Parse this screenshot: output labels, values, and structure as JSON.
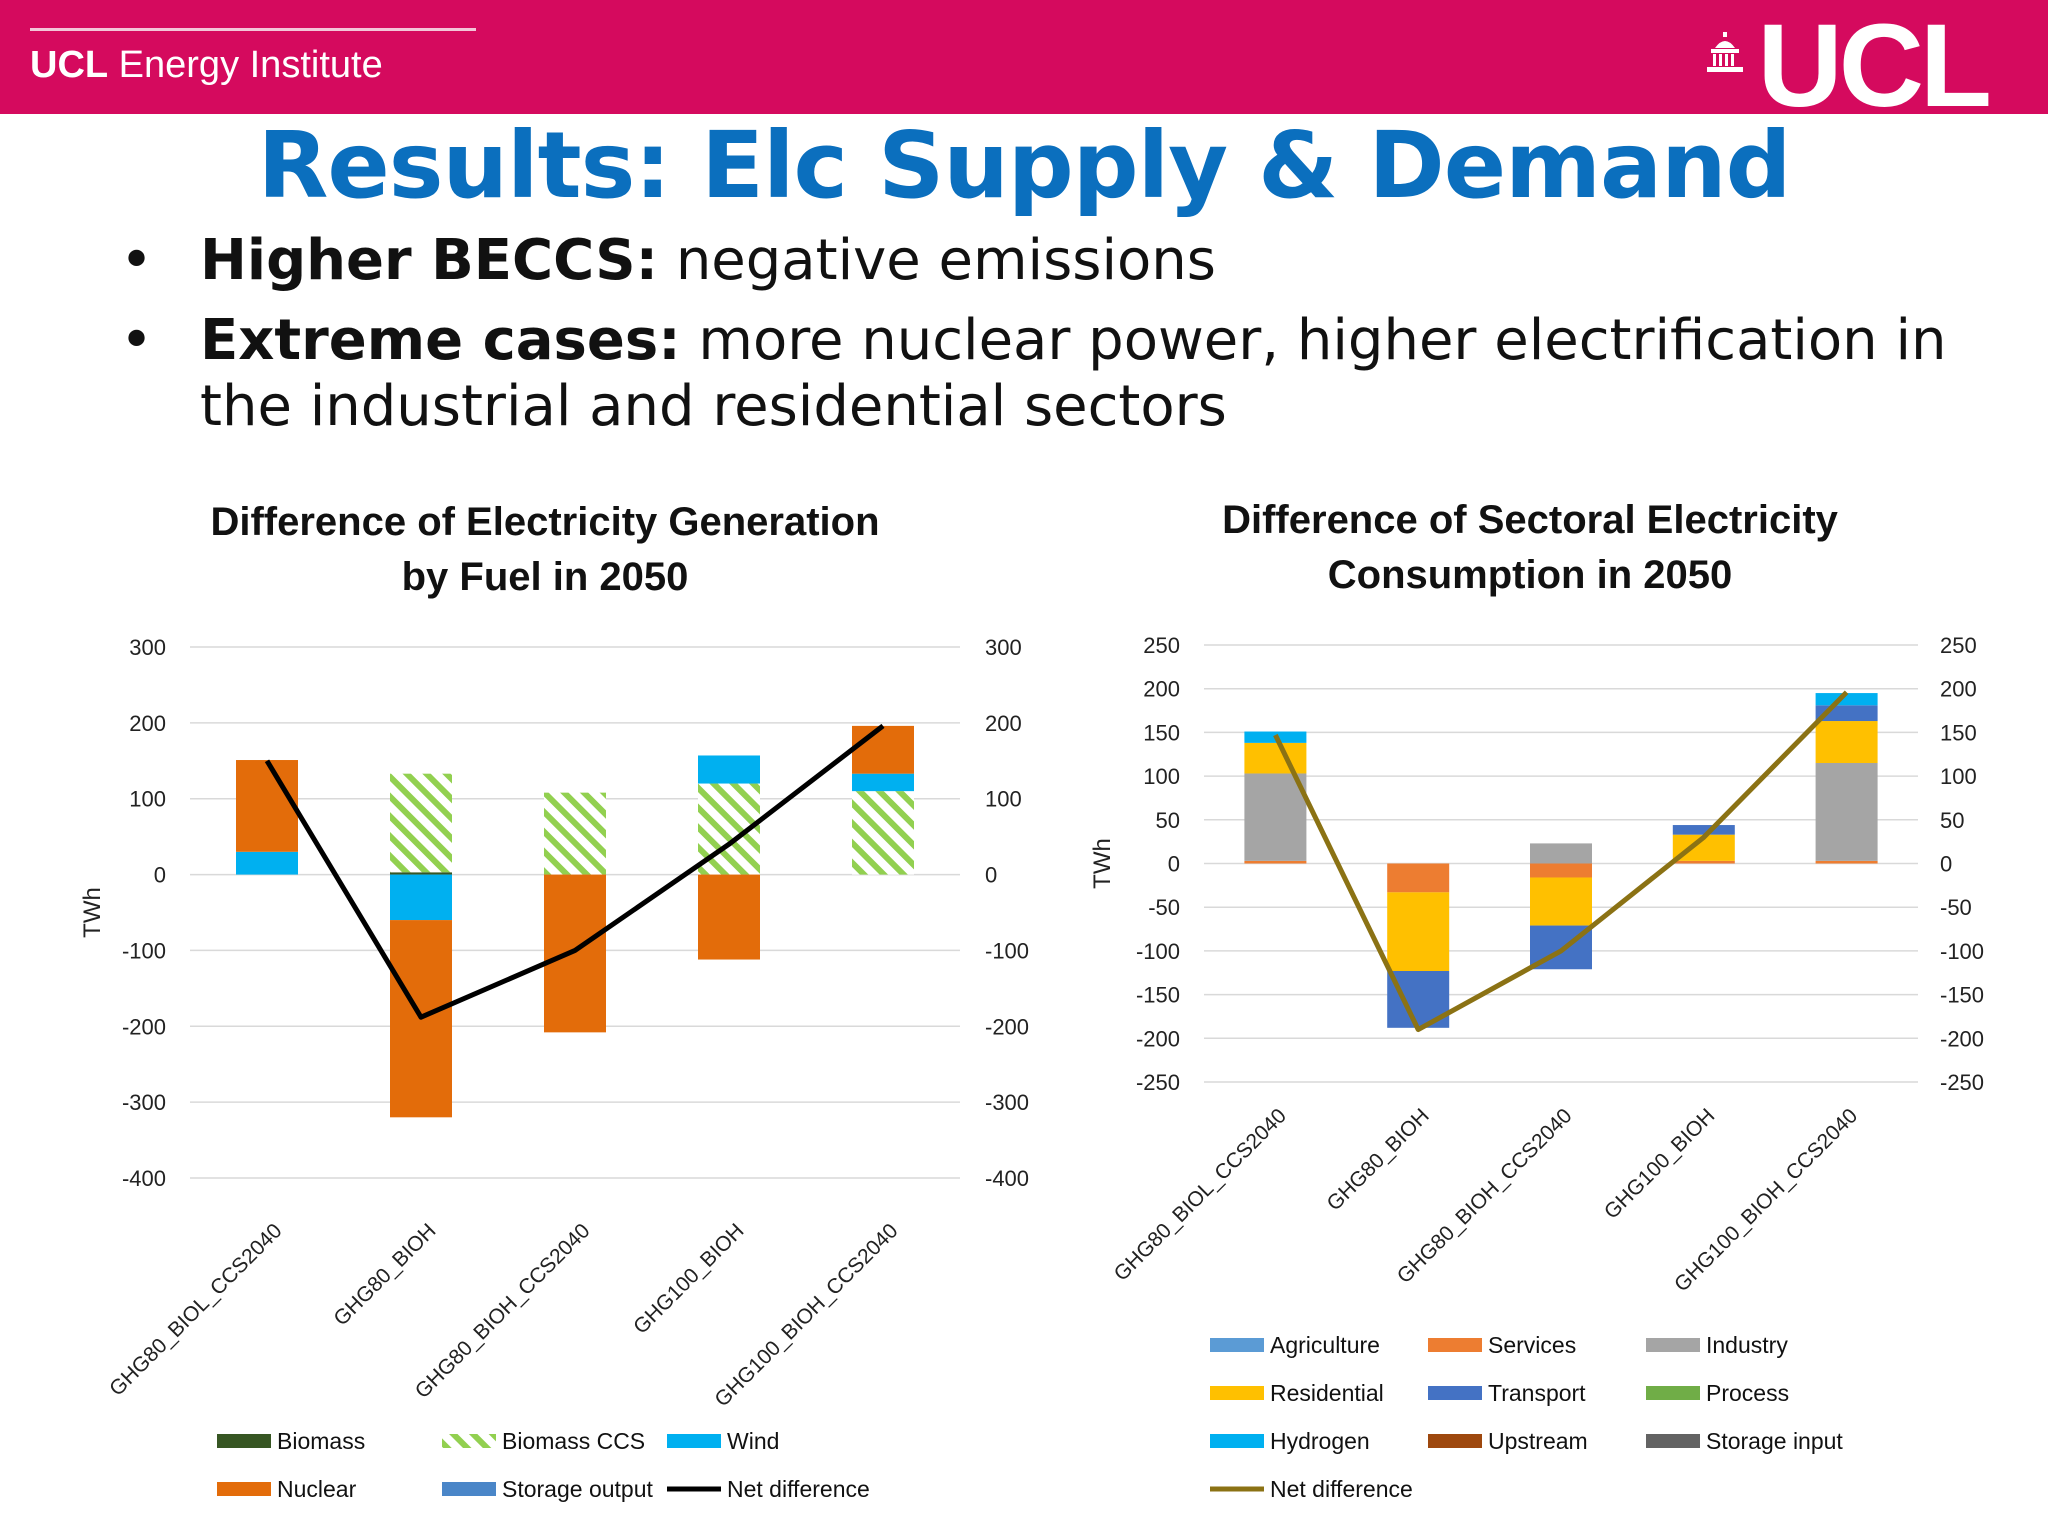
{
  "header": {
    "institute_bold": "UCL",
    "institute_rest": " Energy Institute",
    "logo": "UCL",
    "logo_icon": "portico-dome-icon",
    "banner_color": "#d50a5e"
  },
  "slide": {
    "title": "Results: Elc Supply & Demand",
    "title_color": "#0b6fbe",
    "bullets": [
      {
        "bold": "Higher BECCS:",
        "text": " negative emissions"
      },
      {
        "bold": "Extreme cases:",
        "text": " more nuclear power, higher electrification in the industrial and residential sectors"
      }
    ]
  },
  "chart_data": [
    {
      "type": "bar",
      "stacked": true,
      "title": "Difference of Electricity Generation by Fuel in 2050",
      "title_lines": [
        "Difference of Electricity Generation",
        "by Fuel in 2050"
      ],
      "ylabel": "TWh",
      "ylim": [
        -400,
        300
      ],
      "yticks": [
        300,
        200,
        100,
        0,
        -100,
        -200,
        -300,
        -400
      ],
      "secondary_yaxis": true,
      "grid": true,
      "categories": [
        "GHG80_BIOL_CCS2040",
        "GHG80_BIOH",
        "GHG80_BIOH_CCS2040",
        "GHG100_BIOH",
        "GHG100_BIOH_CCS2040"
      ],
      "series": [
        {
          "name": "Biomass",
          "color": "#375623",
          "values": [
            0,
            3,
            0,
            0,
            0
          ]
        },
        {
          "name": "Biomass CCS",
          "color": "#92d050",
          "pattern": "hatched",
          "values": [
            0,
            130,
            108,
            120,
            110
          ]
        },
        {
          "name": "Wind",
          "color": "#00b0f0",
          "values": [
            30,
            -60,
            0,
            37,
            23
          ]
        },
        {
          "name": "Nuclear",
          "color": "#e36c0a",
          "values": [
            121,
            -260,
            -208,
            -112,
            63
          ]
        },
        {
          "name": "Storage output",
          "color": "#4a86c8",
          "values": [
            0,
            0,
            0,
            0,
            0
          ]
        },
        {
          "name": "Net difference",
          "color": "#000000",
          "kind": "line",
          "values": [
            150,
            -188,
            -100,
            40,
            196
          ]
        }
      ],
      "legend_position": "bottom"
    },
    {
      "type": "bar",
      "stacked": true,
      "title": "Difference of Sectoral Electricity Consumption in 2050",
      "title_lines": [
        "Difference of Sectoral Electricity",
        "Consumption in 2050"
      ],
      "ylabel": "TWh",
      "ylim": [
        -250,
        250
      ],
      "yticks": [
        250,
        200,
        150,
        100,
        50,
        0,
        -50,
        -100,
        -150,
        -200,
        -250
      ],
      "secondary_yaxis": true,
      "grid": true,
      "categories": [
        "GHG80_BIOL_CCS2040",
        "GHG80_BIOH",
        "GHG80_BIOH_CCS2040",
        "GHG100_BIOH",
        "GHG100_BIOH_CCS2040"
      ],
      "series": [
        {
          "name": "Agriculture",
          "color": "#5b9bd5",
          "values": [
            0,
            0,
            0,
            0,
            0
          ]
        },
        {
          "name": "Services",
          "color": "#ed7d31",
          "values": [
            3,
            -33,
            -16,
            3,
            3
          ]
        },
        {
          "name": "Industry",
          "color": "#a5a5a5",
          "values": [
            100,
            0,
            23,
            0,
            112
          ]
        },
        {
          "name": "Residential",
          "color": "#ffc000",
          "values": [
            35,
            -90,
            -55,
            30,
            48
          ]
        },
        {
          "name": "Transport",
          "color": "#4472c4",
          "values": [
            0,
            -65,
            -50,
            11,
            18
          ]
        },
        {
          "name": "Process",
          "color": "#70ad47",
          "values": [
            0,
            0,
            0,
            0,
            0
          ]
        },
        {
          "name": "Hydrogen",
          "color": "#00b0f0",
          "values": [
            13,
            0,
            0,
            0,
            14
          ]
        },
        {
          "name": "Upstream",
          "color": "#9e480e",
          "values": [
            0,
            0,
            0,
            0,
            0
          ]
        },
        {
          "name": "Storage input",
          "color": "#636363",
          "values": [
            0,
            0,
            0,
            0,
            0
          ]
        },
        {
          "name": "Net difference",
          "color": "#8b7214",
          "kind": "line",
          "values": [
            147,
            -190,
            -100,
            30,
            196
          ]
        }
      ],
      "legend_position": "bottom"
    }
  ]
}
